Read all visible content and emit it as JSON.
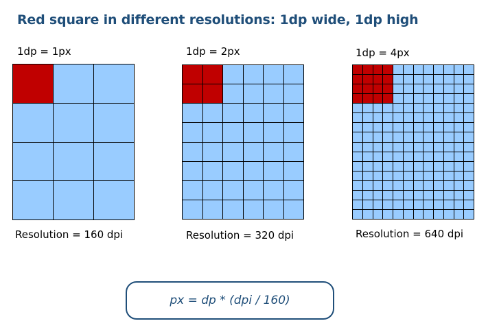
{
  "title": "Red square in different resolutions: 1dp wide, 1dp high",
  "panels": [
    {
      "scale": "1dp = 1px",
      "resolution": "Resolution = 160 dpi",
      "cols": 3,
      "rows": 4,
      "red_cells": 1
    },
    {
      "scale": "1dp = 2px",
      "resolution": "Resolution = 320 dpi",
      "cols": 6,
      "rows": 8,
      "red_cells": 2
    },
    {
      "scale": "1dp = 4px",
      "resolution": "Resolution = 640 dpi",
      "cols": 12,
      "rows": 16,
      "red_cells": 4
    }
  ],
  "formula": "px = dp * (dpi / 160)",
  "colors": {
    "pixel": "#99ccff",
    "red_square": "#c00000",
    "grid_line": "#000000",
    "accent": "#1f4e79"
  }
}
